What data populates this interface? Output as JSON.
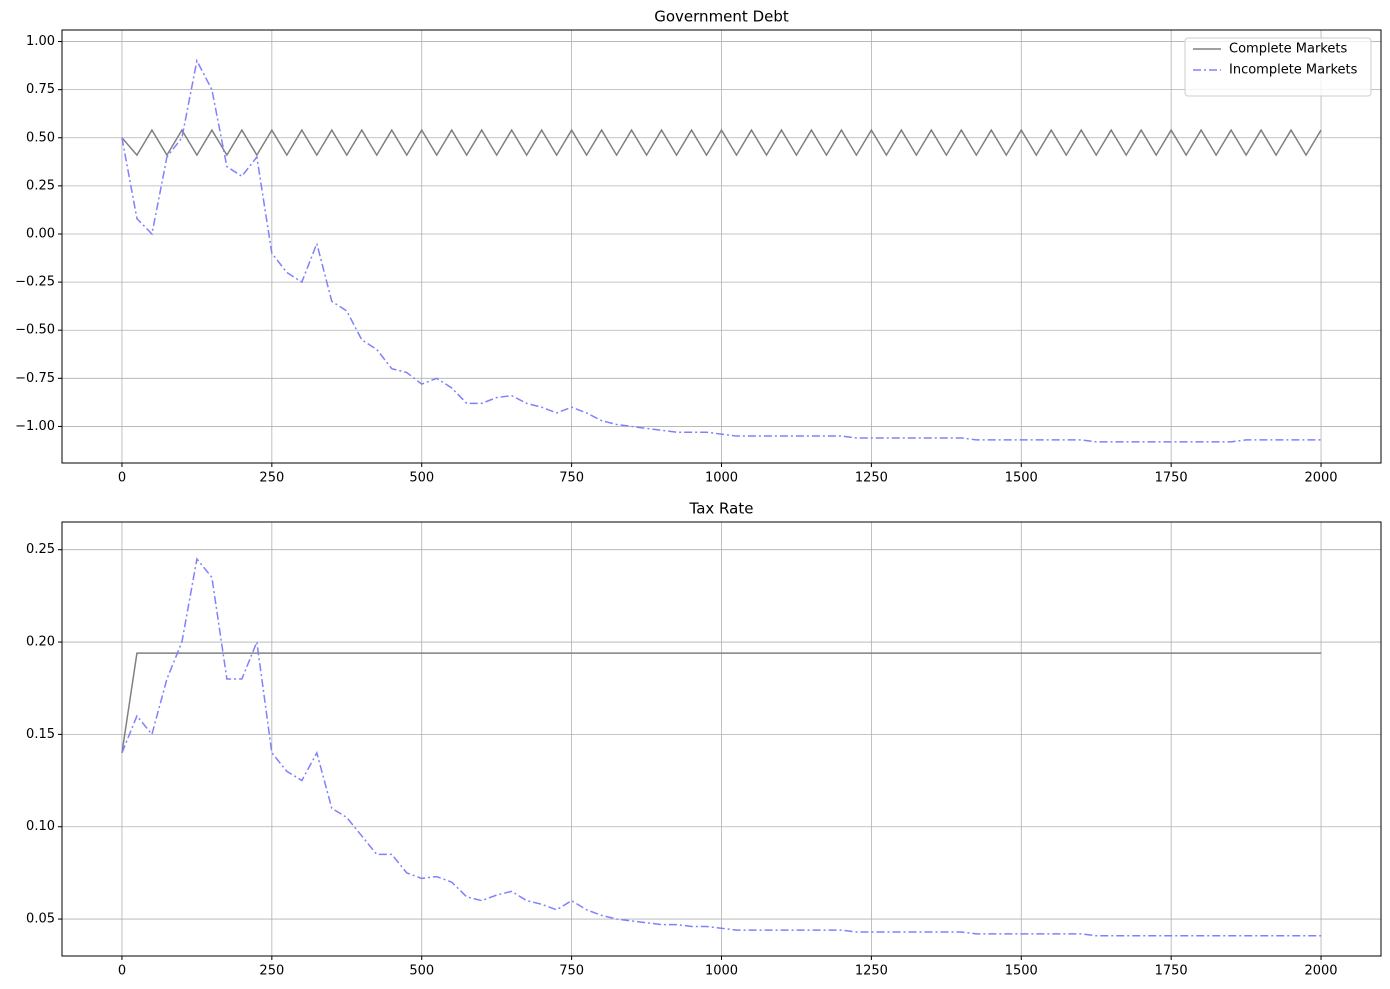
{
  "chart_data": [
    {
      "type": "line",
      "title": "Government Debt",
      "x": [
        0,
        25,
        50,
        75,
        100,
        125,
        150,
        175,
        200,
        225,
        250,
        275,
        300,
        325,
        350,
        375,
        400,
        425,
        450,
        475,
        500,
        525,
        550,
        575,
        600,
        625,
        650,
        675,
        700,
        725,
        750,
        775,
        800,
        825,
        850,
        875,
        900,
        925,
        950,
        975,
        1000,
        1025,
        1050,
        1075,
        1100,
        1125,
        1150,
        1175,
        1200,
        1225,
        1250,
        1275,
        1300,
        1325,
        1350,
        1375,
        1400,
        1425,
        1450,
        1475,
        1500,
        1525,
        1550,
        1575,
        1600,
        1625,
        1650,
        1675,
        1700,
        1725,
        1750,
        1775,
        1800,
        1825,
        1850,
        1875,
        1900,
        1925,
        1950,
        1975,
        2000
      ],
      "series": [
        {
          "name": "Complete Markets",
          "color": "#808080",
          "style": "solid",
          "values": [
            0.5,
            0.41,
            0.54,
            0.41,
            0.54,
            0.41,
            0.54,
            0.41,
            0.54,
            0.41,
            0.54,
            0.41,
            0.54,
            0.41,
            0.54,
            0.41,
            0.54,
            0.41,
            0.54,
            0.41,
            0.54,
            0.41,
            0.54,
            0.41,
            0.54,
            0.41,
            0.54,
            0.41,
            0.54,
            0.41,
            0.54,
            0.41,
            0.54,
            0.41,
            0.54,
            0.41,
            0.54,
            0.41,
            0.54,
            0.41,
            0.54,
            0.41,
            0.54,
            0.41,
            0.54,
            0.41,
            0.54,
            0.41,
            0.54,
            0.41,
            0.54,
            0.41,
            0.54,
            0.41,
            0.54,
            0.41,
            0.54,
            0.41,
            0.54,
            0.41,
            0.54,
            0.41,
            0.54,
            0.41,
            0.54,
            0.41,
            0.54,
            0.41,
            0.54,
            0.41,
            0.54,
            0.41,
            0.54,
            0.41,
            0.54,
            0.41,
            0.54,
            0.41,
            0.54,
            0.41,
            0.54
          ]
        },
        {
          "name": "Incomplete Markets",
          "color": "#8080ff",
          "style": "dashdot",
          "values": [
            0.5,
            0.08,
            0.0,
            0.4,
            0.5,
            0.9,
            0.75,
            0.35,
            0.3,
            0.4,
            -0.1,
            -0.2,
            -0.25,
            -0.05,
            -0.35,
            -0.4,
            -0.55,
            -0.6,
            -0.7,
            -0.72,
            -0.78,
            -0.75,
            -0.8,
            -0.88,
            -0.88,
            -0.85,
            -0.84,
            -0.88,
            -0.9,
            -0.93,
            -0.9,
            -0.93,
            -0.97,
            -0.99,
            -1.0,
            -1.01,
            -1.02,
            -1.03,
            -1.03,
            -1.03,
            -1.04,
            -1.05,
            -1.05,
            -1.05,
            -1.05,
            -1.05,
            -1.05,
            -1.05,
            -1.05,
            -1.06,
            -1.06,
            -1.06,
            -1.06,
            -1.06,
            -1.06,
            -1.06,
            -1.06,
            -1.07,
            -1.07,
            -1.07,
            -1.07,
            -1.07,
            -1.07,
            -1.07,
            -1.07,
            -1.08,
            -1.08,
            -1.08,
            -1.08,
            -1.08,
            -1.08,
            -1.08,
            -1.08,
            -1.08,
            -1.08,
            -1.07,
            -1.07,
            -1.07,
            -1.07,
            -1.07,
            -1.07
          ]
        }
      ],
      "xlim": [
        -100,
        2100
      ],
      "ylim": [
        -1.19,
        1.06
      ],
      "xticks": [
        0,
        250,
        500,
        750,
        1000,
        1250,
        1500,
        1750,
        2000
      ],
      "yticks": [
        {
          "value": 1.0,
          "label": "1.00"
        },
        {
          "value": 0.75,
          "label": "0.75"
        },
        {
          "value": 0.5,
          "label": "0.50"
        },
        {
          "value": 0.25,
          "label": "0.25"
        },
        {
          "value": 0.0,
          "label": "0.00"
        },
        {
          "value": -0.25,
          "label": "−0.25"
        },
        {
          "value": -0.5,
          "label": "−0.50"
        },
        {
          "value": -0.75,
          "label": "−0.75"
        },
        {
          "value": -1.0,
          "label": "−1.00"
        }
      ],
      "grid": true,
      "legend": "upper right"
    },
    {
      "type": "line",
      "title": "Tax Rate",
      "x": [
        0,
        25,
        50,
        75,
        100,
        125,
        150,
        175,
        200,
        225,
        250,
        275,
        300,
        325,
        350,
        375,
        400,
        425,
        450,
        475,
        500,
        525,
        550,
        575,
        600,
        625,
        650,
        675,
        700,
        725,
        750,
        775,
        800,
        825,
        850,
        875,
        900,
        925,
        950,
        975,
        1000,
        1025,
        1050,
        1075,
        1100,
        1125,
        1150,
        1175,
        1200,
        1225,
        1250,
        1275,
        1300,
        1325,
        1350,
        1375,
        1400,
        1425,
        1450,
        1475,
        1500,
        1525,
        1550,
        1575,
        1600,
        1625,
        1650,
        1675,
        1700,
        1725,
        1750,
        1775,
        1800,
        1825,
        1850,
        1875,
        1900,
        1925,
        1950,
        1975,
        2000
      ],
      "series": [
        {
          "color": "#808080",
          "style": "solid",
          "values": [
            0.14,
            0.194,
            0.194,
            0.194,
            0.194,
            0.194,
            0.194,
            0.194,
            0.194,
            0.194,
            0.194,
            0.194,
            0.194,
            0.194,
            0.194,
            0.194,
            0.194,
            0.194,
            0.194,
            0.194,
            0.194,
            0.194,
            0.194,
            0.194,
            0.194,
            0.194,
            0.194,
            0.194,
            0.194,
            0.194,
            0.194,
            0.194,
            0.194,
            0.194,
            0.194,
            0.194,
            0.194,
            0.194,
            0.194,
            0.194,
            0.194,
            0.194,
            0.194,
            0.194,
            0.194,
            0.194,
            0.194,
            0.194,
            0.194,
            0.194,
            0.194,
            0.194,
            0.194,
            0.194,
            0.194,
            0.194,
            0.194,
            0.194,
            0.194,
            0.194,
            0.194,
            0.194,
            0.194,
            0.194,
            0.194,
            0.194,
            0.194,
            0.194,
            0.194,
            0.194,
            0.194,
            0.194,
            0.194,
            0.194,
            0.194,
            0.194,
            0.194,
            0.194,
            0.194,
            0.194,
            0.194
          ]
        },
        {
          "color": "#8080ff",
          "style": "dashdot",
          "values": [
            0.14,
            0.16,
            0.15,
            0.18,
            0.2,
            0.245,
            0.235,
            0.18,
            0.18,
            0.2,
            0.14,
            0.13,
            0.125,
            0.14,
            0.11,
            0.105,
            0.095,
            0.085,
            0.085,
            0.075,
            0.072,
            0.073,
            0.07,
            0.062,
            0.06,
            0.063,
            0.065,
            0.06,
            0.058,
            0.055,
            0.06,
            0.055,
            0.052,
            0.05,
            0.049,
            0.048,
            0.047,
            0.047,
            0.046,
            0.046,
            0.045,
            0.044,
            0.044,
            0.044,
            0.044,
            0.044,
            0.044,
            0.044,
            0.044,
            0.043,
            0.043,
            0.043,
            0.043,
            0.043,
            0.043,
            0.043,
            0.043,
            0.042,
            0.042,
            0.042,
            0.042,
            0.042,
            0.042,
            0.042,
            0.042,
            0.041,
            0.041,
            0.041,
            0.041,
            0.041,
            0.041,
            0.041,
            0.041,
            0.041,
            0.041,
            0.041,
            0.041,
            0.041,
            0.041,
            0.041,
            0.041
          ]
        }
      ],
      "xlim": [
        -100,
        2100
      ],
      "ylim": [
        0.03,
        0.265
      ],
      "xticks": [
        0,
        250,
        500,
        750,
        1000,
        1250,
        1500,
        1750,
        2000
      ],
      "yticks": [
        0.25,
        {
          "value": 0.2,
          "label": "0.20"
        },
        0.15,
        {
          "value": 0.1,
          "label": "0.10"
        },
        0.05
      ],
      "grid": true
    }
  ]
}
